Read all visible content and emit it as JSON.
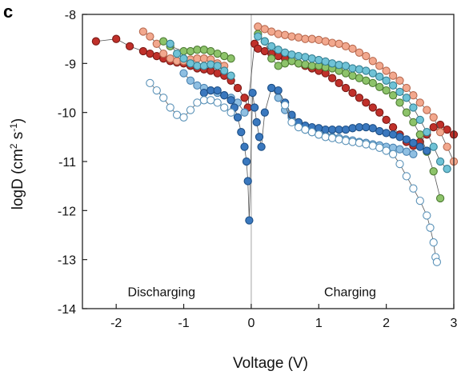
{
  "chart_data": {
    "type": "scatter",
    "panel_label": "c",
    "xlabel": "Voltage (V)",
    "ylabel_main": "logD (cm",
    "ylabel_sup1": "2",
    "ylabel_mid": " s",
    "ylabel_sup2": "-1",
    "ylabel_end": ")",
    "xlim": [
      -2.5,
      3
    ],
    "ylim": [
      -14,
      -8
    ],
    "xticks": [
      {
        "v": -2,
        "label": "-2"
      },
      {
        "v": -1,
        "label": "-1"
      },
      {
        "v": 0,
        "label": "0"
      },
      {
        "v": 1,
        "label": "1"
      },
      {
        "v": 2,
        "label": "2"
      },
      {
        "v": 3,
        "label": "3"
      }
    ],
    "yticks": [
      {
        "v": -8,
        "label": "-8"
      },
      {
        "v": -9,
        "label": "-9"
      },
      {
        "v": -10,
        "label": "-10"
      },
      {
        "v": -11,
        "label": "-11"
      },
      {
        "v": -12,
        "label": "-12"
      },
      {
        "v": -13,
        "label": "-13"
      },
      {
        "v": -14,
        "label": "-14"
      }
    ],
    "zero_line_x": 0,
    "annotations": [
      {
        "text": "Discharging",
        "x": -1.83,
        "y": -13.75
      },
      {
        "text": "Charging",
        "x": 1.08,
        "y": -13.75
      }
    ],
    "series": [
      {
        "color": "#c0302a",
        "stroke": "#7a1a16",
        "points": [
          [
            -2.3,
            -8.55
          ],
          [
            -2.0,
            -8.5
          ],
          [
            -1.8,
            -8.65
          ],
          [
            -1.6,
            -8.75
          ],
          [
            -1.5,
            -8.8
          ],
          [
            -1.4,
            -8.85
          ],
          [
            -1.3,
            -8.9
          ],
          [
            -1.2,
            -8.95
          ],
          [
            -1.1,
            -8.98
          ],
          [
            -1.0,
            -9.0
          ],
          [
            -0.9,
            -9.05
          ],
          [
            -0.8,
            -9.1
          ],
          [
            -0.7,
            -9.12
          ],
          [
            -0.6,
            -9.15
          ],
          [
            -0.5,
            -9.2
          ],
          [
            -0.4,
            -9.25
          ],
          [
            -0.3,
            -9.35
          ],
          [
            -0.2,
            -9.5
          ],
          [
            -0.1,
            -9.7
          ],
          [
            -0.05,
            -9.9
          ],
          [
            0.05,
            -8.6
          ],
          [
            0.1,
            -8.7
          ],
          [
            0.2,
            -8.75
          ],
          [
            0.3,
            -8.8
          ],
          [
            0.4,
            -8.85
          ],
          [
            0.5,
            -8.9
          ],
          [
            0.6,
            -8.95
          ],
          [
            0.7,
            -9.0
          ],
          [
            0.8,
            -9.05
          ],
          [
            0.9,
            -9.1
          ],
          [
            1.0,
            -9.15
          ],
          [
            1.1,
            -9.2
          ],
          [
            1.2,
            -9.3
          ],
          [
            1.3,
            -9.4
          ],
          [
            1.4,
            -9.5
          ],
          [
            1.5,
            -9.6
          ],
          [
            1.6,
            -9.7
          ],
          [
            1.7,
            -9.8
          ],
          [
            1.8,
            -9.9
          ],
          [
            1.9,
            -10.0
          ],
          [
            2.0,
            -10.15
          ],
          [
            2.1,
            -10.3
          ],
          [
            2.2,
            -10.45
          ],
          [
            2.3,
            -10.6
          ],
          [
            2.4,
            -10.68
          ],
          [
            2.5,
            -10.6
          ],
          [
            2.6,
            -10.45
          ],
          [
            2.7,
            -10.3
          ],
          [
            2.8,
            -10.25
          ],
          [
            2.9,
            -10.35
          ],
          [
            3.0,
            -10.45
          ]
        ]
      },
      {
        "color": "#f2a88e",
        "stroke": "#b86a50",
        "points": [
          [
            -1.6,
            -8.35
          ],
          [
            -1.5,
            -8.45
          ],
          [
            -1.4,
            -8.6
          ],
          [
            -1.3,
            -8.8
          ],
          [
            -1.2,
            -8.9
          ],
          [
            -1.1,
            -8.95
          ],
          [
            -1.0,
            -8.95
          ],
          [
            -0.9,
            -8.92
          ],
          [
            -0.8,
            -8.9
          ],
          [
            -0.7,
            -8.9
          ],
          [
            -0.6,
            -8.92
          ],
          [
            -0.5,
            -9.0
          ],
          [
            -0.4,
            -9.05
          ],
          [
            0.1,
            -8.25
          ],
          [
            0.2,
            -8.3
          ],
          [
            0.3,
            -8.35
          ],
          [
            0.4,
            -8.4
          ],
          [
            0.5,
            -8.42
          ],
          [
            0.6,
            -8.45
          ],
          [
            0.7,
            -8.47
          ],
          [
            0.8,
            -8.5
          ],
          [
            0.9,
            -8.5
          ],
          [
            1.0,
            -8.52
          ],
          [
            1.1,
            -8.55
          ],
          [
            1.2,
            -8.58
          ],
          [
            1.3,
            -8.6
          ],
          [
            1.4,
            -8.65
          ],
          [
            1.5,
            -8.7
          ],
          [
            1.6,
            -8.78
          ],
          [
            1.7,
            -8.85
          ],
          [
            1.8,
            -8.95
          ],
          [
            1.9,
            -9.05
          ],
          [
            2.0,
            -9.15
          ],
          [
            2.1,
            -9.25
          ],
          [
            2.2,
            -9.35
          ],
          [
            2.3,
            -9.5
          ],
          [
            2.4,
            -9.65
          ],
          [
            2.5,
            -9.8
          ],
          [
            2.6,
            -9.95
          ],
          [
            2.7,
            -10.1
          ],
          [
            2.8,
            -10.4
          ],
          [
            2.9,
            -10.7
          ],
          [
            3.0,
            -11.0
          ]
        ]
      },
      {
        "color": "#8dc36a",
        "stroke": "#4e7c34",
        "points": [
          [
            -1.3,
            -8.55
          ],
          [
            -1.2,
            -8.65
          ],
          [
            -1.0,
            -8.75
          ],
          [
            -0.9,
            -8.75
          ],
          [
            -0.8,
            -8.72
          ],
          [
            -0.7,
            -8.72
          ],
          [
            -0.6,
            -8.75
          ],
          [
            -0.5,
            -8.8
          ],
          [
            -0.4,
            -8.85
          ],
          [
            -0.3,
            -8.9
          ],
          [
            0.1,
            -8.4
          ],
          [
            0.2,
            -8.55
          ],
          [
            0.3,
            -8.9
          ],
          [
            0.4,
            -9.05
          ],
          [
            0.5,
            -9.0
          ],
          [
            0.6,
            -8.95
          ],
          [
            0.7,
            -9.0
          ],
          [
            0.8,
            -9.02
          ],
          [
            0.9,
            -9.05
          ],
          [
            1.0,
            -9.05
          ],
          [
            1.1,
            -9.08
          ],
          [
            1.2,
            -9.1
          ],
          [
            1.3,
            -9.15
          ],
          [
            1.4,
            -9.2
          ],
          [
            1.5,
            -9.25
          ],
          [
            1.6,
            -9.3
          ],
          [
            1.7,
            -9.35
          ],
          [
            1.8,
            -9.4
          ],
          [
            1.9,
            -9.48
          ],
          [
            2.0,
            -9.55
          ],
          [
            2.1,
            -9.65
          ],
          [
            2.2,
            -9.8
          ],
          [
            2.3,
            -10.0
          ],
          [
            2.4,
            -10.2
          ],
          [
            2.5,
            -10.45
          ],
          [
            2.6,
            -10.8
          ],
          [
            2.7,
            -11.2
          ],
          [
            2.8,
            -11.75
          ]
        ]
      },
      {
        "color": "#6fc2d6",
        "stroke": "#357f92",
        "points": [
          [
            -1.2,
            -8.6
          ],
          [
            -1.1,
            -8.8
          ],
          [
            -1.0,
            -8.9
          ],
          [
            -0.9,
            -9.0
          ],
          [
            -0.8,
            -9.05
          ],
          [
            -0.7,
            -9.05
          ],
          [
            -0.6,
            -9.02
          ],
          [
            -0.5,
            -9.05
          ],
          [
            -0.4,
            -9.15
          ],
          [
            -0.3,
            -9.25
          ],
          [
            0.1,
            -8.45
          ],
          [
            0.2,
            -8.55
          ],
          [
            0.3,
            -8.65
          ],
          [
            0.4,
            -8.72
          ],
          [
            0.5,
            -8.78
          ],
          [
            0.6,
            -8.82
          ],
          [
            0.7,
            -8.85
          ],
          [
            0.8,
            -8.87
          ],
          [
            0.9,
            -8.9
          ],
          [
            1.0,
            -8.93
          ],
          [
            1.1,
            -8.96
          ],
          [
            1.2,
            -9.0
          ],
          [
            1.3,
            -9.03
          ],
          [
            1.4,
            -9.05
          ],
          [
            1.5,
            -9.1
          ],
          [
            1.6,
            -9.12
          ],
          [
            1.7,
            -9.15
          ],
          [
            1.8,
            -9.2
          ],
          [
            1.9,
            -9.27
          ],
          [
            2.0,
            -9.35
          ],
          [
            2.1,
            -9.45
          ],
          [
            2.2,
            -9.58
          ],
          [
            2.3,
            -9.7
          ],
          [
            2.4,
            -9.9
          ],
          [
            2.5,
            -10.15
          ],
          [
            2.6,
            -10.4
          ],
          [
            2.7,
            -10.7
          ],
          [
            2.8,
            -11.0
          ],
          [
            2.9,
            -11.15
          ]
        ]
      },
      {
        "color": "#8fbfe2",
        "stroke": "#4a82b0",
        "points": [
          [
            -1.0,
            -9.2
          ],
          [
            -0.9,
            -9.35
          ],
          [
            -0.8,
            -9.45
          ],
          [
            -0.7,
            -9.5
          ],
          [
            -0.6,
            -9.55
          ],
          [
            -0.5,
            -9.6
          ],
          [
            -0.4,
            -9.65
          ],
          [
            -0.3,
            -9.7
          ],
          [
            -0.2,
            -9.8
          ],
          [
            -0.1,
            -10.0
          ],
          [
            0.3,
            -9.5
          ],
          [
            0.4,
            -9.7
          ],
          [
            0.5,
            -9.95
          ],
          [
            0.6,
            -10.1
          ],
          [
            0.7,
            -10.25
          ],
          [
            0.8,
            -10.35
          ],
          [
            0.9,
            -10.4
          ],
          [
            1.0,
            -10.45
          ],
          [
            1.1,
            -10.47
          ],
          [
            1.2,
            -10.5
          ],
          [
            1.3,
            -10.52
          ],
          [
            1.4,
            -10.55
          ],
          [
            1.5,
            -10.57
          ],
          [
            1.6,
            -10.6
          ],
          [
            1.7,
            -10.62
          ],
          [
            1.8,
            -10.65
          ],
          [
            1.9,
            -10.67
          ],
          [
            2.0,
            -10.7
          ],
          [
            2.1,
            -10.72
          ],
          [
            2.2,
            -10.75
          ],
          [
            2.3,
            -10.8
          ],
          [
            2.4,
            -10.85
          ]
        ]
      },
      {
        "color": "#3a78be",
        "stroke": "#1d4f86",
        "points": [
          [
            -0.7,
            -9.6
          ],
          [
            -0.6,
            -9.55
          ],
          [
            -0.5,
            -9.55
          ],
          [
            -0.4,
            -9.65
          ],
          [
            -0.3,
            -9.75
          ],
          [
            -0.25,
            -9.9
          ],
          [
            -0.2,
            -10.1
          ],
          [
            -0.15,
            -10.4
          ],
          [
            -0.1,
            -10.7
          ],
          [
            -0.07,
            -11.0
          ],
          [
            -0.05,
            -11.4
          ],
          [
            -0.03,
            -12.2
          ],
          [
            0.02,
            -9.6
          ],
          [
            0.05,
            -9.9
          ],
          [
            0.08,
            -10.2
          ],
          [
            0.12,
            -10.5
          ],
          [
            0.15,
            -10.7
          ],
          [
            0.2,
            -10.0
          ],
          [
            0.3,
            -9.5
          ],
          [
            0.4,
            -9.55
          ],
          [
            0.5,
            -9.8
          ],
          [
            0.6,
            -10.05
          ],
          [
            0.7,
            -10.2
          ],
          [
            0.8,
            -10.27
          ],
          [
            0.9,
            -10.3
          ],
          [
            1.0,
            -10.32
          ],
          [
            1.1,
            -10.35
          ],
          [
            1.2,
            -10.35
          ],
          [
            1.3,
            -10.35
          ],
          [
            1.4,
            -10.35
          ],
          [
            1.5,
            -10.32
          ],
          [
            1.6,
            -10.3
          ],
          [
            1.7,
            -10.3
          ],
          [
            1.8,
            -10.32
          ],
          [
            1.9,
            -10.38
          ],
          [
            2.0,
            -10.42
          ],
          [
            2.1,
            -10.45
          ],
          [
            2.2,
            -10.5
          ],
          [
            2.3,
            -10.55
          ],
          [
            2.4,
            -10.62
          ],
          [
            2.5,
            -10.7
          ],
          [
            2.6,
            -10.78
          ]
        ]
      },
      {
        "color": "#ffffff",
        "stroke": "#5a92b8",
        "points": [
          [
            -1.5,
            -9.4
          ],
          [
            -1.4,
            -9.55
          ],
          [
            -1.3,
            -9.7
          ],
          [
            -1.2,
            -9.9
          ],
          [
            -1.1,
            -10.05
          ],
          [
            -1.0,
            -10.1
          ],
          [
            -0.9,
            -9.95
          ],
          [
            -0.8,
            -9.8
          ],
          [
            -0.7,
            -9.75
          ],
          [
            -0.6,
            -9.75
          ],
          [
            -0.5,
            -9.8
          ],
          [
            -0.4,
            -9.9
          ],
          [
            -0.3,
            -10.0
          ],
          [
            0.5,
            -9.85
          ],
          [
            0.6,
            -10.2
          ],
          [
            0.7,
            -10.3
          ],
          [
            0.8,
            -10.35
          ],
          [
            0.9,
            -10.4
          ],
          [
            1.0,
            -10.45
          ],
          [
            1.1,
            -10.5
          ],
          [
            1.2,
            -10.52
          ],
          [
            1.3,
            -10.55
          ],
          [
            1.4,
            -10.58
          ],
          [
            1.5,
            -10.6
          ],
          [
            1.6,
            -10.62
          ],
          [
            1.7,
            -10.65
          ],
          [
            1.8,
            -10.68
          ],
          [
            1.9,
            -10.72
          ],
          [
            2.0,
            -10.78
          ],
          [
            2.1,
            -10.85
          ],
          [
            2.2,
            -11.05
          ],
          [
            2.3,
            -11.3
          ],
          [
            2.4,
            -11.55
          ],
          [
            2.5,
            -11.8
          ],
          [
            2.6,
            -12.1
          ],
          [
            2.65,
            -12.35
          ],
          [
            2.7,
            -12.65
          ],
          [
            2.73,
            -12.95
          ],
          [
            2.75,
            -13.05
          ]
        ]
      }
    ]
  }
}
